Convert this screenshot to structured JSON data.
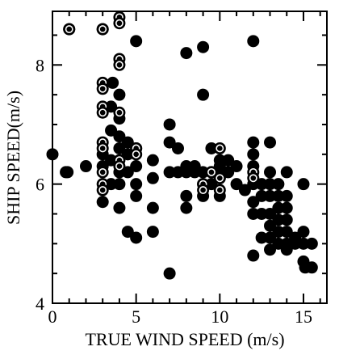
{
  "chart_data": {
    "type": "scatter",
    "title": "",
    "xlabel": "TRUE WIND SPEED (m/s)",
    "ylabel": "SHIP SPEED(m/s)",
    "xlim": [
      0,
      16.4
    ],
    "ylim": [
      4,
      8.9
    ],
    "xticks": [
      0,
      5,
      10,
      15
    ],
    "xtick_labels": [
      "0",
      "5",
      "10",
      "15"
    ],
    "xminor": [
      1,
      2,
      3,
      4,
      6,
      7,
      8,
      9,
      11,
      12,
      13,
      14,
      16
    ],
    "yticks": [
      4,
      6,
      8
    ],
    "ytick_labels": [
      "4",
      "6",
      "8"
    ],
    "yminor": [
      4.5,
      5,
      5.5,
      6.5,
      7,
      7.5,
      8.5
    ],
    "grid": false,
    "legend": "none",
    "series": [
      {
        "marker": "filled-circle",
        "color": "#000000",
        "points": [
          [
            0,
            6.5
          ],
          [
            1,
            8.6
          ],
          [
            0.9,
            6.2
          ],
          [
            0.8,
            6.2
          ],
          [
            2,
            6.3
          ],
          [
            3,
            8.6
          ],
          [
            3,
            6.5
          ],
          [
            3,
            6.3
          ],
          [
            3,
            5.7
          ],
          [
            3.5,
            7.3
          ],
          [
            3.5,
            6.9
          ],
          [
            3.5,
            6.4
          ],
          [
            3.5,
            6.0
          ],
          [
            3.6,
            7.7
          ],
          [
            4,
            7.5
          ],
          [
            4,
            7.1
          ],
          [
            4,
            6.8
          ],
          [
            4,
            6.6
          ],
          [
            4,
            6.2
          ],
          [
            4,
            6.0
          ],
          [
            4,
            5.6
          ],
          [
            4.5,
            6.7
          ],
          [
            4.5,
            6.5
          ],
          [
            4.5,
            6.2
          ],
          [
            4.5,
            5.2
          ],
          [
            5,
            8.4
          ],
          [
            5,
            6.6
          ],
          [
            5,
            6.3
          ],
          [
            5,
            6.0
          ],
          [
            5,
            5.8
          ],
          [
            5,
            5.1
          ],
          [
            6,
            6.4
          ],
          [
            6,
            6.1
          ],
          [
            6,
            5.6
          ],
          [
            6,
            5.2
          ],
          [
            7,
            7.0
          ],
          [
            7,
            6.7
          ],
          [
            7,
            6.2
          ],
          [
            7,
            4.5
          ],
          [
            7.5,
            6.2
          ],
          [
            7.5,
            6.6
          ],
          [
            8,
            8.2
          ],
          [
            8,
            6.3
          ],
          [
            8,
            6.2
          ],
          [
            8,
            5.8
          ],
          [
            8,
            5.6
          ],
          [
            8.5,
            6.3
          ],
          [
            8.5,
            6.2
          ],
          [
            9,
            8.3
          ],
          [
            9,
            7.5
          ],
          [
            9,
            6.2
          ],
          [
            9,
            6.0
          ],
          [
            9,
            5.8
          ],
          [
            9.5,
            6.6
          ],
          [
            9.5,
            6.2
          ],
          [
            9.5,
            6.0
          ],
          [
            10,
            6.4
          ],
          [
            10,
            6.3
          ],
          [
            10,
            6.2
          ],
          [
            10,
            6.1
          ],
          [
            10,
            5.8
          ],
          [
            10.5,
            6.4
          ],
          [
            10.5,
            6.2
          ],
          [
            11,
            6.3
          ],
          [
            11,
            6.0
          ],
          [
            11.5,
            5.9
          ],
          [
            12,
            8.4
          ],
          [
            12,
            6.7
          ],
          [
            12,
            6.5
          ],
          [
            12,
            6.3
          ],
          [
            12,
            6.0
          ],
          [
            12,
            5.7
          ],
          [
            12,
            5.5
          ],
          [
            12,
            4.8
          ],
          [
            12.5,
            6.0
          ],
          [
            12.5,
            5.8
          ],
          [
            12.5,
            5.5
          ],
          [
            12.5,
            5.1
          ],
          [
            13,
            6.7
          ],
          [
            13,
            6.2
          ],
          [
            13,
            6.0
          ],
          [
            13,
            5.8
          ],
          [
            13,
            5.5
          ],
          [
            13,
            5.3
          ],
          [
            13,
            5.1
          ],
          [
            13,
            4.9
          ],
          [
            13.5,
            6.0
          ],
          [
            13.5,
            5.8
          ],
          [
            13.5,
            5.6
          ],
          [
            13.5,
            5.4
          ],
          [
            13.5,
            5.2
          ],
          [
            13.5,
            5.0
          ],
          [
            14,
            6.2
          ],
          [
            14,
            5.8
          ],
          [
            14,
            5.6
          ],
          [
            14,
            5.4
          ],
          [
            14,
            5.2
          ],
          [
            14,
            5.0
          ],
          [
            14,
            4.9
          ],
          [
            14.5,
            5.1
          ],
          [
            14.5,
            5.0
          ],
          [
            15,
            6.0
          ],
          [
            15,
            5.2
          ],
          [
            15,
            5.0
          ],
          [
            15,
            4.7
          ],
          [
            15.5,
            5.0
          ],
          [
            15.5,
            4.6
          ],
          [
            15.1,
            4.6
          ]
        ]
      },
      {
        "marker": "hollow-circle",
        "color": "#000000",
        "points": [
          [
            1,
            8.6
          ],
          [
            3,
            8.6
          ],
          [
            3,
            7.7
          ],
          [
            3,
            7.6
          ],
          [
            3,
            7.3
          ],
          [
            3,
            7.2
          ],
          [
            3,
            6.7
          ],
          [
            3,
            6.6
          ],
          [
            3,
            6.2
          ],
          [
            3,
            6.0
          ],
          [
            3,
            5.9
          ],
          [
            4,
            8.8
          ],
          [
            4,
            8.7
          ],
          [
            4,
            8.1
          ],
          [
            4,
            8.0
          ],
          [
            4,
            7.2
          ],
          [
            4,
            6.4
          ],
          [
            4,
            6.3
          ],
          [
            5,
            6.6
          ],
          [
            5,
            6.5
          ],
          [
            9,
            6.0
          ],
          [
            9,
            5.9
          ],
          [
            9.5,
            6.2
          ],
          [
            10,
            6.6
          ],
          [
            10,
            6.1
          ],
          [
            10,
            5.9
          ],
          [
            12,
            6.2
          ],
          [
            12,
            6.1
          ]
        ]
      }
    ]
  }
}
